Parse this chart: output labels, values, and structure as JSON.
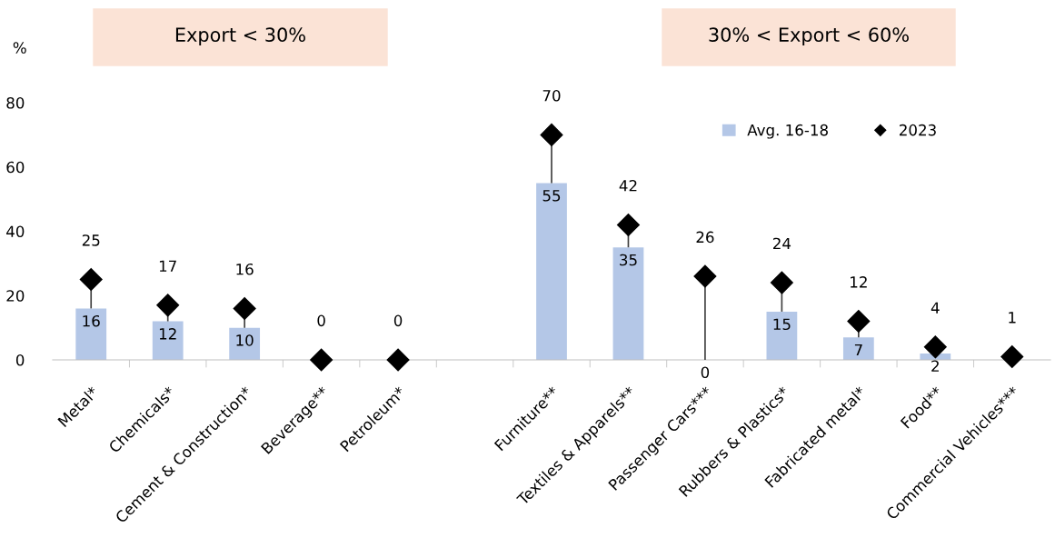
{
  "chart_data": {
    "type": "bar",
    "ylabel": "%",
    "annotations": [
      "Export < 30%",
      "30% < Export < 60%"
    ],
    "categories": [
      "Metal*",
      "Chemicals*",
      "Cement & Construction*",
      "Beverage**",
      "Petroleum*",
      null,
      "Furniture**",
      "Textiles & Apparels**",
      "Passenger Cars***",
      "Rubbers & Plastics*",
      "Fabricated metal*",
      "Food**",
      "Commercial Vehicles***"
    ],
    "series": [
      {
        "name": "Avg. 16-18",
        "color": "#b4c7e7",
        "values": [
          16,
          12,
          10,
          0,
          0,
          null,
          55,
          35,
          0,
          15,
          7,
          2,
          0
        ],
        "value_labels": [
          "16",
          "12",
          "10",
          null,
          null,
          null,
          "55",
          "35",
          "0",
          "15",
          "7",
          "2",
          null
        ]
      },
      {
        "name": "2023",
        "type": "scatter",
        "color": "#000000",
        "marker": "diamond",
        "values": [
          25,
          17,
          16,
          0,
          0,
          null,
          70,
          42,
          26,
          24,
          12,
          4,
          1
        ],
        "errors": [
          [
            16,
            25
          ],
          [
            12,
            17
          ],
          [
            10,
            16
          ],
          null,
          null,
          null,
          [
            55,
            70
          ],
          [
            35,
            42
          ],
          [
            0,
            26
          ],
          [
            15,
            24
          ],
          [
            7,
            12
          ],
          [
            2,
            4
          ],
          null
        ],
        "data_labels": true
      }
    ],
    "ylim": [
      0,
      80
    ],
    "yticks": [
      0,
      20,
      40,
      60,
      80
    ],
    "grid": false,
    "legend": "top right"
  }
}
